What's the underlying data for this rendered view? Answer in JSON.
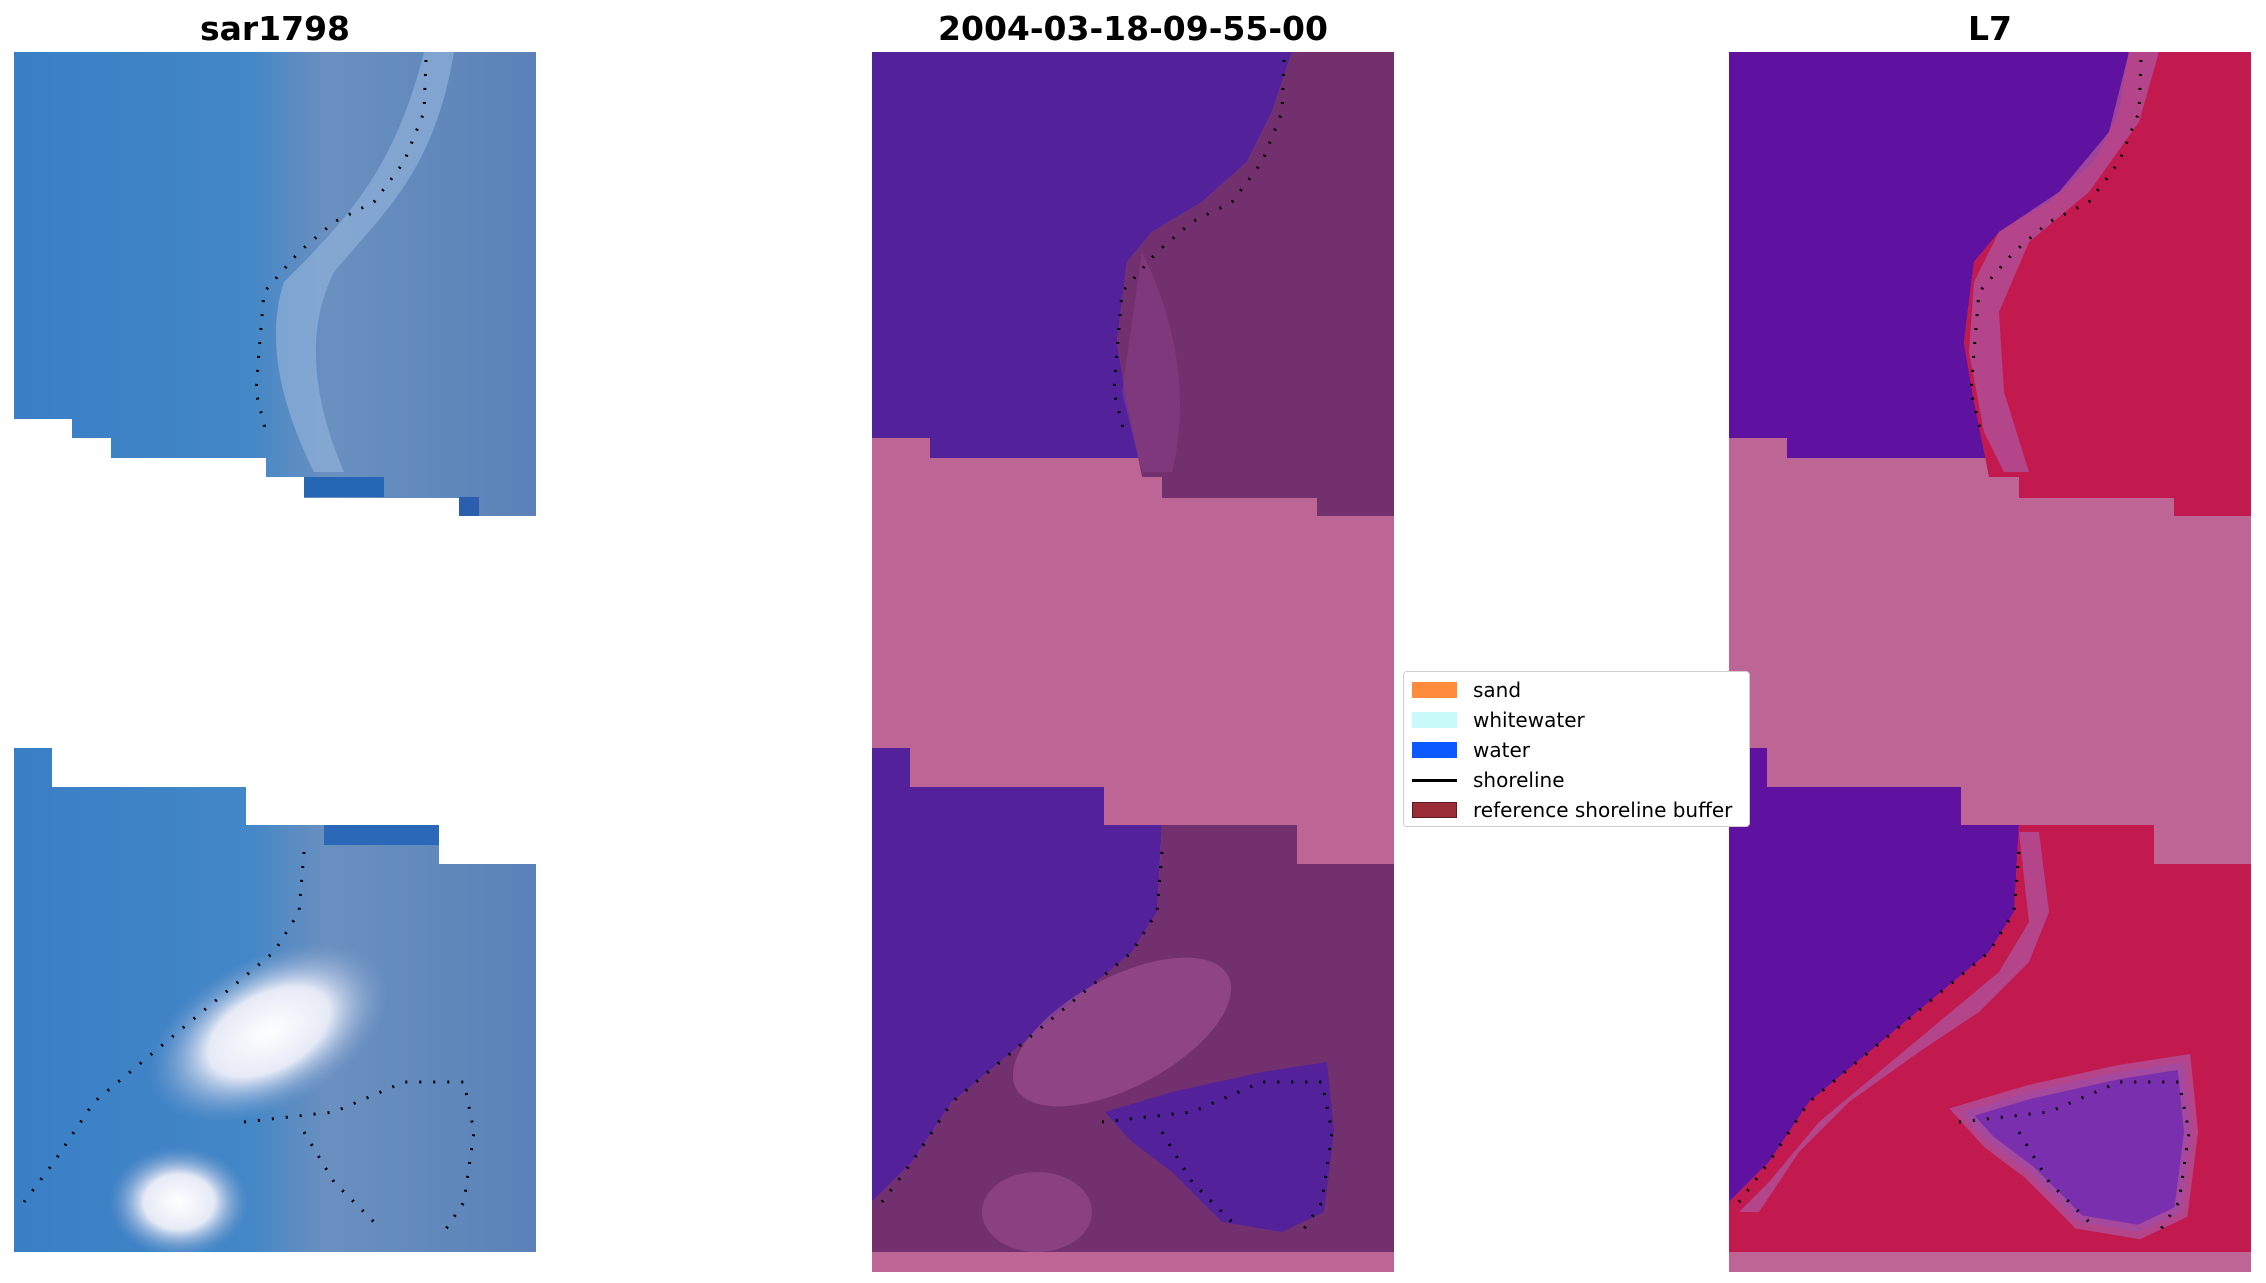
{
  "panels": [
    {
      "title": "sar1798"
    },
    {
      "title": "2004-03-18-09-55-00"
    },
    {
      "title": "L7"
    }
  ],
  "legend": {
    "items": [
      {
        "label": "sand",
        "color": "#ff8c3c"
      },
      {
        "label": "whitewater",
        "color": "#c8fafa"
      },
      {
        "label": "water",
        "color": "#0a5aff"
      },
      {
        "label": "shoreline",
        "color": "#000000"
      },
      {
        "label": "reference shoreline buffer",
        "color": "#992c36"
      }
    ]
  },
  "colors": {
    "rgb_water": "#3f80c3",
    "rgb_sand": "#6a88b8",
    "rgb_whitewater": "#f2f2fa",
    "class_water": "#53229b",
    "class_sand": "#72306f",
    "class_nodata": "#bd6695",
    "index_water": "#5f12a0",
    "index_sand": "#c21a4e"
  }
}
